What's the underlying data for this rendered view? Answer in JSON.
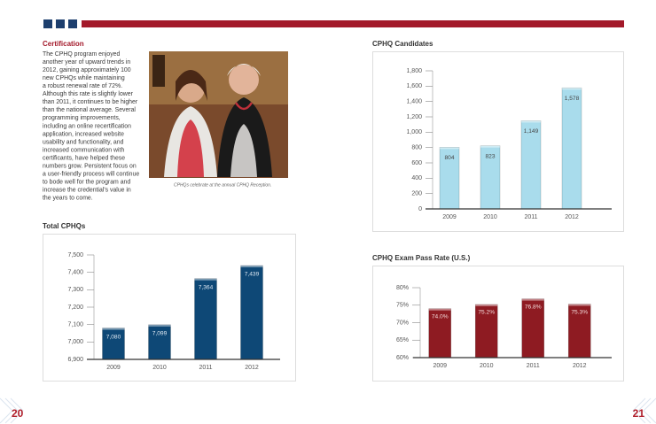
{
  "certification": {
    "heading": "Certification",
    "lines": [
      "The CPHQ program enjoyed",
      "another year of upward trends in",
      "2012, gaining approximately 100",
      "new CPHQs while maintaining",
      "a robust renewal rate of 72%.",
      "Although this rate is slightly lower",
      "than 2011, it continues to be higher",
      "than the national average. Several",
      "programming improvements,",
      "including an online recertification",
      "application, increased website",
      "usability and functionality, and",
      "increased communication with",
      "certificants, have helped these",
      "numbers grow. Persistent focus on",
      "a user-friendly process will continue",
      "to bode well for the program and",
      "increase the credential's value in",
      "the years to come."
    ]
  },
  "photo_caption": "CPHQs celebrate at the annual CPHQ Reception.",
  "page_numbers": [
    "20",
    "21"
  ],
  "chart_data": [
    {
      "type": "bar",
      "title": "CPHQ Candidates",
      "categories": [
        "2009",
        "2010",
        "2011",
        "2012"
      ],
      "values": [
        804,
        823,
        1149,
        1578
      ],
      "value_labels": [
        "804",
        "823",
        "1,149",
        "1,578"
      ],
      "color": "#a9dcec",
      "ylim": [
        0,
        1800
      ],
      "yticks": [
        0,
        200,
        400,
        600,
        800,
        {
          "value": 1000,
          "label": "1,000"
        },
        {
          "value": 1200,
          "label": "1,200"
        },
        {
          "value": 1400,
          "label": "1,400"
        },
        {
          "value": 1600,
          "label": "1,600"
        },
        {
          "value": 1800,
          "label": "1,800"
        }
      ]
    },
    {
      "type": "bar",
      "title": "Total CPHQs",
      "categories": [
        "2009",
        "2010",
        "2011",
        "2012"
      ],
      "values": [
        7080,
        7099,
        7364,
        7439
      ],
      "value_labels": [
        "7,080",
        "7,099",
        "7,364",
        "7,439"
      ],
      "color": "#0e4876",
      "ylim": [
        6900,
        7500
      ],
      "yticks": [
        {
          "value": 6900,
          "label": "6,900"
        },
        {
          "value": 7000,
          "label": "7,000"
        },
        {
          "value": 7100,
          "label": "7,100"
        },
        {
          "value": 7200,
          "label": "7,200"
        },
        {
          "value": 7300,
          "label": "7,300"
        },
        {
          "value": 7400,
          "label": "7,400"
        },
        {
          "value": 7500,
          "label": "7,500"
        }
      ]
    },
    {
      "type": "bar",
      "title": "CPHQ Exam Pass Rate (U.S.)",
      "categories": [
        "2009",
        "2010",
        "2011",
        "2012"
      ],
      "values": [
        74.0,
        75.2,
        76.8,
        75.3
      ],
      "value_labels": [
        "74.0%",
        "75.2%",
        "76.8%",
        "75.3%"
      ],
      "color": "#8e1b22",
      "ylim": [
        60,
        80
      ],
      "yticks": [
        {
          "value": 60,
          "label": "60%"
        },
        {
          "value": 65,
          "label": "65%"
        },
        {
          "value": 70,
          "label": "70%"
        },
        {
          "value": 75,
          "label": "75%"
        },
        {
          "value": 80,
          "label": "80%"
        }
      ]
    }
  ]
}
